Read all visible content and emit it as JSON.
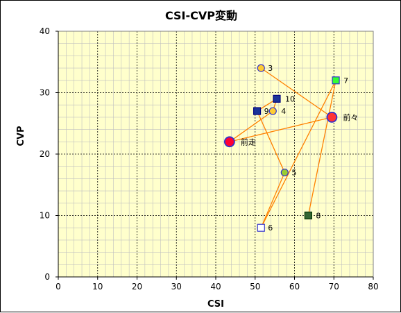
{
  "chart_data": {
    "type": "scatter",
    "title": "CSI-CVP変動",
    "xlabel": "CSI",
    "ylabel": "CVP",
    "xlim": [
      0,
      80
    ],
    "ylim": [
      0,
      40
    ],
    "xticks": [
      0,
      10,
      20,
      30,
      40,
      50,
      60,
      70,
      80
    ],
    "yticks": [
      0,
      10,
      20,
      30,
      40
    ],
    "grid": true,
    "colors": {
      "plot_bg": "#ffffcc",
      "line": "#ff8000",
      "major_grid": "#000000",
      "minor_grid": "#c0c0c0"
    },
    "path_order": [
      "3",
      "前々",
      "前走",
      "4",
      "10",
      "9",
      "5",
      "6",
      "7",
      "8"
    ],
    "points": [
      {
        "label": "3",
        "x": 51.5,
        "y": 34,
        "marker": "circle-small",
        "fill": "#ffcc33",
        "stroke": "#3333cc"
      },
      {
        "label": "前々",
        "x": 69.5,
        "y": 26,
        "marker": "circle-large",
        "fill": "#ff3333",
        "stroke": "#3333cc"
      },
      {
        "label": "前走",
        "x": 43.5,
        "y": 22,
        "marker": "circle-large",
        "fill": "#ff0033",
        "stroke": "#3333cc"
      },
      {
        "label": "4",
        "x": 54.5,
        "y": 27,
        "marker": "circle-small",
        "fill": "#ffcc33",
        "stroke": "#3333cc"
      },
      {
        "label": "10",
        "x": 55.5,
        "y": 29,
        "marker": "square",
        "fill": "#1a3399",
        "stroke": "#000080"
      },
      {
        "label": "9",
        "x": 50.5,
        "y": 27,
        "marker": "square",
        "fill": "#1a3399",
        "stroke": "#000080"
      },
      {
        "label": "5",
        "x": 57.5,
        "y": 17,
        "marker": "circle-small",
        "fill": "#99cc33",
        "stroke": "#3333cc"
      },
      {
        "label": "6",
        "x": 51.5,
        "y": 8,
        "marker": "square",
        "fill": "#ffffff",
        "stroke": "#3333cc"
      },
      {
        "label": "7",
        "x": 70.5,
        "y": 32,
        "marker": "square",
        "fill": "#33ff33",
        "stroke": "#3333cc"
      },
      {
        "label": "8",
        "x": 63.5,
        "y": 10,
        "marker": "square",
        "fill": "#336633",
        "stroke": "#003300"
      }
    ]
  }
}
